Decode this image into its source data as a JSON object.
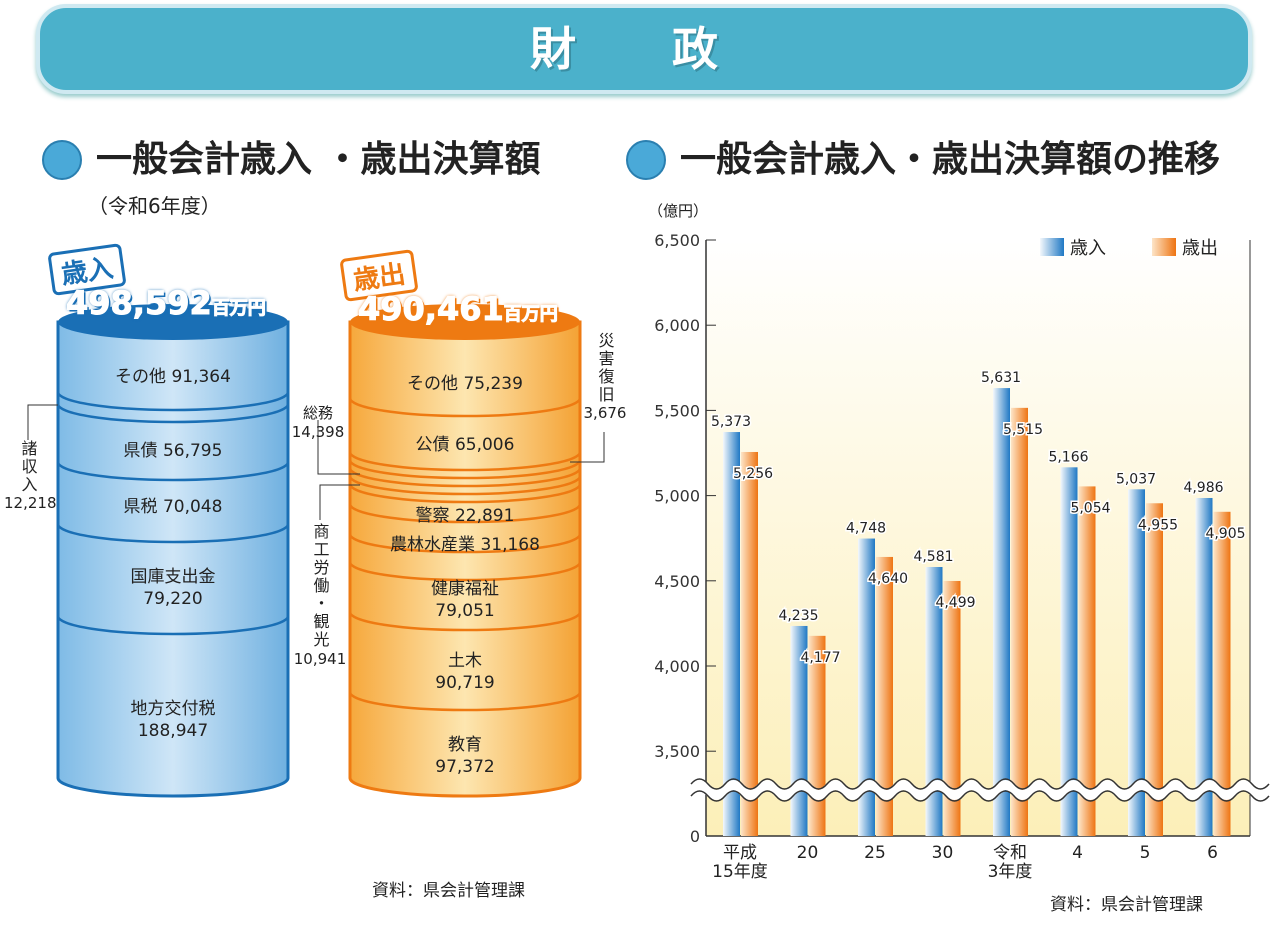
{
  "banner": {
    "title": "財 政"
  },
  "left": {
    "title": "一般会計歳入 ・歳出決算額",
    "subtitle": "（令和6年度）",
    "revenue": {
      "tag": "歳入",
      "total": "498,592",
      "unit": "百万円",
      "color": "#1a6fb5",
      "segments": [
        {
          "label": "その他 91,364"
        },
        {
          "label": "県債 56,795"
        },
        {
          "label": "県税 70,048"
        },
        {
          "label": "国庫支出金",
          "value": "79,220"
        },
        {
          "label": "地方交付税",
          "value": "188,947"
        }
      ],
      "side": {
        "label": "諸収入",
        "value": "12,218"
      }
    },
    "expenditure": {
      "tag": "歳出",
      "total": "490,461",
      "unit": "百万円",
      "color": "#ee7a12",
      "segments": [
        {
          "label": "その他 75,239"
        },
        {
          "label": "公債 65,006"
        },
        {
          "label": "警察 22,891"
        },
        {
          "label": "農林水産業 31,168"
        },
        {
          "label": "健康福祉",
          "value": "79,051"
        },
        {
          "label": "土木",
          "value": "90,719"
        },
        {
          "label": "教育",
          "value": "97,372"
        }
      ],
      "side": [
        {
          "label": "総務",
          "value": "14,398"
        },
        {
          "label": "商工労働・観光",
          "value": "10,941"
        },
        {
          "label": "災害復旧",
          "value": "3,676"
        }
      ]
    },
    "source": "資料：県会計管理課"
  },
  "right": {
    "title": "一般会計歳入・歳出決算額の推移",
    "source": "資料：県会計管理課"
  },
  "chart_data": {
    "type": "bar",
    "ylabel": "（億円）",
    "categories": [
      "平成\n15年度",
      "20",
      "25",
      "30",
      "令和\n3年度",
      "4",
      "5",
      "6"
    ],
    "series": [
      {
        "name": "歳入",
        "color": "#2a7fc8",
        "values": [
          5373,
          4235,
          4748,
          4581,
          5631,
          5166,
          5037,
          4986
        ],
        "labels": [
          "5,373",
          "4,235",
          "4,748",
          "4,581",
          "5,631",
          "5,166",
          "5,037",
          "4,986"
        ]
      },
      {
        "name": "歳出",
        "color": "#f07c1a",
        "values": [
          5256,
          4177,
          4640,
          4499,
          5515,
          5054,
          4955,
          4905
        ],
        "labels": [
          "5,256",
          "4,177",
          "4,640",
          "4,499",
          "5,515",
          "5,054",
          "4,955",
          "4,905"
        ]
      }
    ],
    "yticks": [
      "6,500",
      "6,000",
      "5,500",
      "5,000",
      "4,500",
      "4,000",
      "3,500",
      "0"
    ],
    "ylim": [
      3250,
      6500
    ],
    "axis_break": true,
    "legend": "top-right"
  }
}
